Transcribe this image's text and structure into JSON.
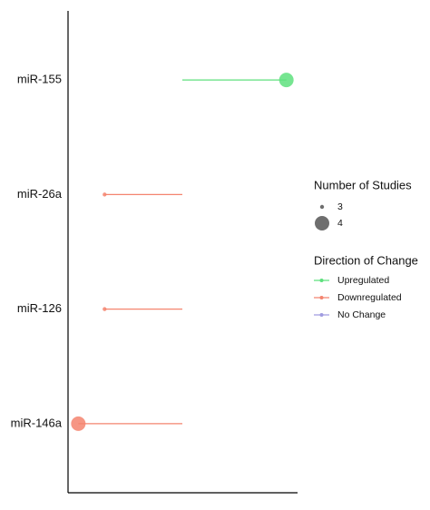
{
  "chart_data": {
    "type": "lollipop",
    "categories": [
      "miR-155",
      "miR-26a",
      "miR-126",
      "miR-146a"
    ],
    "values": [
      0.91,
      -0.68,
      -0.68,
      -0.91
    ],
    "studies": [
      4,
      3,
      3,
      4
    ],
    "direction": [
      0,
      1,
      1,
      1
    ],
    "xlim": [
      -1,
      1
    ],
    "size_legend": {
      "title": "Number of Studies",
      "values": [
        3,
        4
      ]
    },
    "color_legend": {
      "title": "Direction of Change",
      "names": [
        "Upregulated",
        "Downregulated",
        "No Change"
      ],
      "colors": [
        "#5ee07e",
        "#f4846f",
        "#a09ce0"
      ]
    }
  }
}
